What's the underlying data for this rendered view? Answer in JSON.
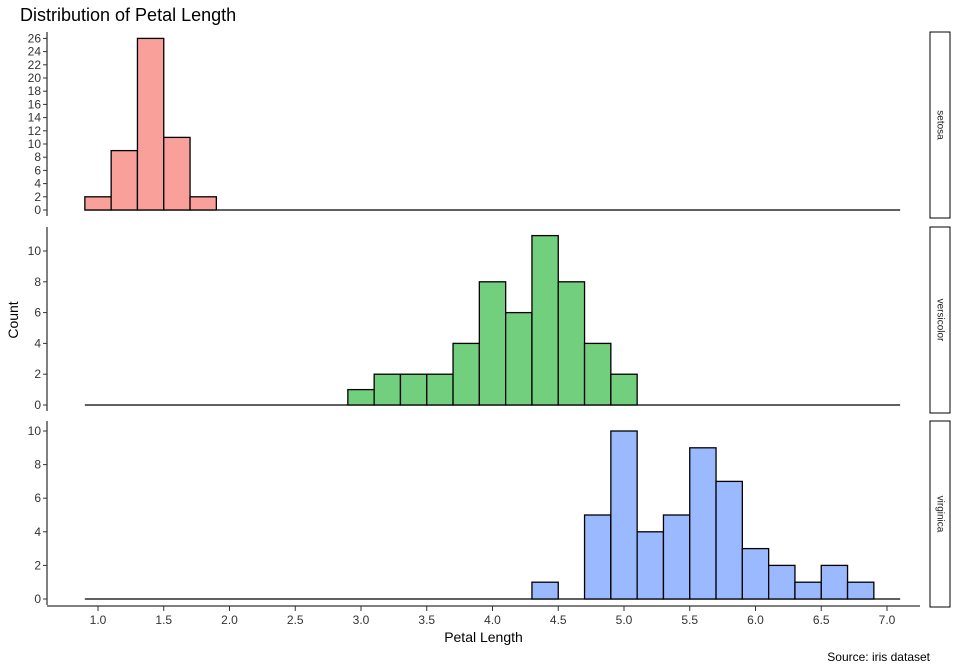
{
  "chart_data": {
    "type": "bar",
    "title": "Distribution of Petal Length",
    "xlabel": "Petal Length",
    "ylabel": "Count",
    "caption": "Source: iris dataset",
    "bin_width": 0.2,
    "xlim": [
      1.0,
      7.0
    ],
    "x_ticks": [
      "1.0",
      "1.5",
      "2.0",
      "2.5",
      "3.0",
      "3.5",
      "4.0",
      "4.5",
      "5.0",
      "5.5",
      "6.0",
      "6.5",
      "7.0"
    ],
    "grid": false,
    "panels": [
      {
        "strip_label": "setosa",
        "color": "#f8766d",
        "y_ticks": [
          0,
          2,
          4,
          6,
          8,
          10,
          12,
          14,
          16,
          18,
          20,
          22,
          24,
          26
        ],
        "bins": [
          {
            "x": 1.0,
            "count": 2
          },
          {
            "x": 1.2,
            "count": 9
          },
          {
            "x": 1.4,
            "count": 26
          },
          {
            "x": 1.6,
            "count": 11
          },
          {
            "x": 1.8,
            "count": 2
          }
        ]
      },
      {
        "strip_label": "versicolor",
        "color": "#00ba38",
        "y_ticks": [
          0,
          2,
          4,
          6,
          8,
          10
        ],
        "bins": [
          {
            "x": 3.0,
            "count": 1
          },
          {
            "x": 3.2,
            "count": 2
          },
          {
            "x": 3.4,
            "count": 2
          },
          {
            "x": 3.6,
            "count": 2
          },
          {
            "x": 3.8,
            "count": 4
          },
          {
            "x": 4.0,
            "count": 8
          },
          {
            "x": 4.2,
            "count": 6
          },
          {
            "x": 4.4,
            "count": 11
          },
          {
            "x": 4.6,
            "count": 8
          },
          {
            "x": 4.8,
            "count": 4
          },
          {
            "x": 5.0,
            "count": 2
          }
        ]
      },
      {
        "strip_label": "virginica",
        "color": "#619cff",
        "y_ticks": [
          0,
          2,
          4,
          6,
          8,
          10
        ],
        "bins": [
          {
            "x": 4.4,
            "count": 1
          },
          {
            "x": 4.8,
            "count": 5
          },
          {
            "x": 5.0,
            "count": 10
          },
          {
            "x": 5.2,
            "count": 4
          },
          {
            "x": 5.4,
            "count": 5
          },
          {
            "x": 5.6,
            "count": 9
          },
          {
            "x": 5.8,
            "count": 7
          },
          {
            "x": 6.0,
            "count": 3
          },
          {
            "x": 6.2,
            "count": 2
          },
          {
            "x": 6.4,
            "count": 1
          },
          {
            "x": 6.6,
            "count": 2
          },
          {
            "x": 6.8,
            "count": 1
          }
        ]
      }
    ]
  }
}
